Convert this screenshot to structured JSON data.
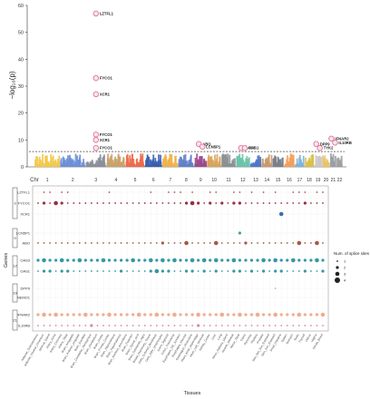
{
  "chart_data": [
    {
      "type": "scatter",
      "subtype": "manhattan",
      "ylabel": "−log₁₀(p)",
      "ylim": [
        0,
        60
      ],
      "yticks": [
        0,
        10,
        20,
        30,
        40,
        50,
        60
      ],
      "xlabel_prefix": "Chr",
      "chromosomes": [
        "1",
        "2",
        "3",
        "4",
        "5",
        "6",
        "7",
        "8",
        "9",
        "10",
        "11",
        "12",
        "13",
        "14",
        "15",
        "16",
        "17",
        "18",
        "19",
        "20",
        "21",
        "22"
      ],
      "chromosome_colors": [
        "#f2c94c",
        "#6e8fd6",
        "#8a8f99",
        "#c9a26b",
        "#ee6a4a",
        "#3a5fb0",
        "#f0b14a",
        "#5f7fc9",
        "#9b4a8c",
        "#d9a45a",
        "#8c8f94",
        "#6cc3a8",
        "#4f78c9",
        "#c99a6e",
        "#7a7f8a",
        "#f4a05a",
        "#7fb3d9",
        "#d9c04a",
        "#c9c9c9",
        "#e8c46a",
        "#9aa0a6",
        "#a0a0a0"
      ],
      "significance_threshold": 5.7,
      "highlighted_snps": [
        {
          "gene": "LZTFL1",
          "chr": "3",
          "neglog10p": 57
        },
        {
          "gene": "FYCO1",
          "chr": "3",
          "neglog10p": 33
        },
        {
          "gene": "XCR1",
          "chr": "3",
          "neglog10p": 27
        },
        {
          "gene": "FYCO1",
          "chr": "3",
          "neglog10p": 12
        },
        {
          "gene": "XCR1",
          "chr": "3",
          "neglog10p": 10
        },
        {
          "gene": "FYCO1",
          "chr": "3",
          "neglog10p": 7
        },
        {
          "gene": "ABO",
          "chr": "9",
          "neglog10p": 8.5
        },
        {
          "gene": "LCN5P1",
          "chr": "9",
          "neglog10p": 7.5
        },
        {
          "gene": "OAS3",
          "chr": "12",
          "neglog10p": 7
        },
        {
          "gene": "OAS1",
          "chr": "12",
          "neglog10p": 7
        },
        {
          "gene": "DPP9",
          "chr": "19",
          "neglog10p": 8.5
        },
        {
          "gene": "TYK2",
          "chr": "19",
          "neglog10p": 7
        },
        {
          "gene": "IFNAR2",
          "chr": "21",
          "neglog10p": 10.5
        },
        {
          "gene": "IL10RB",
          "chr": "21",
          "neglog10p": 9
        }
      ]
    },
    {
      "type": "scatter",
      "subtype": "dot-matrix",
      "ylabel": "Genes",
      "xlabel": "Tissues",
      "genes": [
        "LZTFL1",
        "FYCO1",
        "XCR1",
        "LCN5P1",
        "ABO",
        "OAS3",
        "OAS1",
        "DPP9",
        "NEMO1",
        "IFNAR2",
        "IL10RB"
      ],
      "gene_groups": [
        {
          "label": "3",
          "genes": [
            "LZTFL1",
            "FYCO1",
            "XCR1"
          ]
        },
        {
          "label": "9",
          "genes": [
            "LCN5P1",
            "ABO"
          ]
        },
        {
          "label": "12",
          "genes": [
            "OAS3",
            "OAS1"
          ]
        },
        {
          "label": "19",
          "genes": [
            "DPP9",
            "NEMO1"
          ]
        },
        {
          "label": "21",
          "genes": [
            "IFNAR2",
            "IL10RB"
          ]
        }
      ],
      "gene_colors": {
        "LZTFL1": "#b23a48",
        "FYCO1": "#8b1a2b",
        "XCR1": "#2a5fa8",
        "LCN5P1": "#3a9d5d",
        "ABO": "#a0462e",
        "OAS3": "#1f8e99",
        "OAS1": "#1f8e99",
        "DPP9": "#c8a4b4",
        "NEMO1": "#c8a4b4",
        "IFNAR2": "#f0a384",
        "IL10RB": "#e07a8a"
      },
      "tissues": [
        "Adipose_Subcutaneous",
        "Adipose_Visceral_Omentum",
        "Adrenal_Gland",
        "Artery_Aorta",
        "Artery_Coronary",
        "Artery_Tibial",
        "Brain_Amygdala",
        "Brain_Anterior_cingulate",
        "Brain_Caudate",
        "Brain_Cerebellar_Hemisphere",
        "Brain_Cerebellum",
        "Brain_Cortex",
        "Brain_Frontal_Cortex",
        "Brain_Hippocampus",
        "Brain_Hypothalamus",
        "Brain_Nucleus_accumbens",
        "Brain_Putamen",
        "Brain_Spinal_cord",
        "Brain_Substantia_nigra",
        "Breast_Mammary_Tissue",
        "Cells_Cultured_fibroblasts",
        "Cells_EBV_lymphocytes",
        "Colon_Sigmoid",
        "Colon_Transverse",
        "Esophagus_GE_Junction",
        "Esophagus_Mucosa",
        "Esophagus_Muscularis",
        "Heart_Atrial_Appendage",
        "Heart_Left_Ventricle",
        "Kidney_Cortex",
        "Liver",
        "Lung",
        "Minor_Salivary_Gland",
        "Muscle_Skeletal",
        "Nerve_Tibial",
        "Ovary",
        "Pancreas",
        "Pituitary",
        "Prostate",
        "Skin_Not_Sun_Exposed",
        "Skin_Sun_Exposed",
        "Small_Intestine",
        "Spleen",
        "Stomach",
        "Testis",
        "Thyroid",
        "Uterus",
        "Vagina",
        "Whole_Blood"
      ],
      "legend": {
        "title": "Num. of splice sites",
        "entries": [
          "1",
          "2",
          "3",
          "4"
        ]
      },
      "splice_sites": {
        "LZTFL1": [
          0,
          1,
          1,
          0,
          1,
          1,
          0,
          0,
          0,
          0,
          0,
          0,
          1,
          0,
          0,
          0,
          0,
          0,
          0,
          1,
          0,
          0,
          1,
          1,
          1,
          0,
          1,
          0,
          0,
          1,
          1,
          0,
          0,
          1,
          1,
          0,
          1,
          0,
          1,
          0,
          1,
          0,
          0,
          1,
          1,
          1,
          0,
          1,
          1
        ],
        "FYCO1": [
          1,
          2,
          1,
          3,
          2,
          1,
          1,
          1,
          1,
          1,
          1,
          1,
          1,
          1,
          1,
          1,
          1,
          1,
          1,
          1,
          1,
          1,
          1,
          1,
          1,
          2,
          3,
          2,
          1,
          2,
          1,
          2,
          1,
          2,
          2,
          1,
          1,
          1,
          1,
          1,
          1,
          1,
          1,
          1,
          1,
          2,
          1,
          1,
          1
        ],
        "XCR1": [
          0,
          0,
          0,
          0,
          0,
          0,
          0,
          0,
          0,
          0,
          0,
          0,
          0,
          0,
          0,
          0,
          0,
          0,
          0,
          0,
          0,
          0,
          0,
          0,
          0,
          0,
          0,
          0,
          0,
          0,
          0,
          0,
          0,
          0,
          0,
          0,
          0,
          0,
          0,
          0,
          0,
          3,
          0,
          0,
          0,
          0,
          0,
          0,
          0
        ],
        "LCN5P1": [
          0,
          0,
          0,
          0,
          0,
          0,
          0,
          0,
          0,
          0,
          0,
          0,
          0,
          0,
          0,
          0,
          0,
          0,
          0,
          0,
          0,
          0,
          0,
          0,
          0,
          0,
          0,
          0,
          0,
          0,
          0,
          0,
          0,
          0,
          2,
          0,
          0,
          0,
          0,
          0,
          0,
          0,
          0,
          0,
          0,
          0,
          0,
          0,
          0
        ],
        "ABO": [
          1,
          1,
          1,
          1,
          1,
          1,
          1,
          1,
          1,
          1,
          1,
          1,
          1,
          1,
          1,
          1,
          1,
          1,
          1,
          1,
          1,
          2,
          1,
          1,
          1,
          3,
          1,
          1,
          1,
          1,
          3,
          1,
          1,
          1,
          1,
          2,
          1,
          1,
          1,
          1,
          1,
          1,
          1,
          1,
          3,
          1,
          1,
          3,
          1
        ],
        "OAS3": [
          2,
          3,
          2,
          2,
          3,
          2,
          2,
          3,
          2,
          2,
          2,
          3,
          2,
          2,
          2,
          2,
          3,
          2,
          2,
          3,
          2,
          3,
          2,
          3,
          2,
          2,
          3,
          2,
          3,
          2,
          3,
          2,
          2,
          3,
          2,
          2,
          2,
          2,
          3,
          2,
          3,
          2,
          2,
          3,
          2,
          2,
          2,
          3,
          2
        ],
        "OAS1": [
          1,
          2,
          2,
          1,
          2,
          2,
          1,
          1,
          1,
          1,
          1,
          1,
          1,
          1,
          2,
          1,
          1,
          1,
          1,
          2,
          3,
          2,
          2,
          1,
          1,
          2,
          2,
          1,
          2,
          1,
          2,
          1,
          1,
          2,
          2,
          1,
          2,
          1,
          2,
          1,
          2,
          2,
          1,
          1,
          1,
          2,
          1,
          1,
          2
        ],
        "DPP9": [
          0,
          0,
          0,
          0,
          0,
          0,
          0,
          0,
          0,
          0,
          0,
          0,
          0,
          0,
          0,
          0,
          0,
          0,
          0,
          0,
          0,
          0,
          0,
          0,
          0,
          0,
          0,
          0,
          0,
          0,
          0,
          0,
          0,
          0,
          0,
          0,
          0,
          0,
          0,
          0,
          1,
          0,
          0,
          0,
          0,
          0,
          0,
          0,
          0
        ],
        "NEMO1": [
          0,
          0,
          0,
          0,
          0,
          0,
          0,
          0,
          0,
          0,
          0,
          0,
          0,
          0,
          0,
          0,
          0,
          0,
          0,
          0,
          0,
          0,
          0,
          0,
          0,
          0,
          0,
          0,
          0,
          0,
          0,
          0,
          0,
          0,
          0,
          0,
          0,
          0,
          0,
          0,
          0,
          0,
          0,
          0,
          0,
          0,
          0,
          0,
          0
        ],
        "IFNAR2": [
          2,
          3,
          2,
          3,
          2,
          2,
          2,
          2,
          3,
          2,
          2,
          2,
          3,
          2,
          2,
          2,
          2,
          3,
          2,
          2,
          3,
          2,
          2,
          3,
          2,
          2,
          2,
          3,
          2,
          2,
          2,
          3,
          2,
          2,
          3,
          2,
          2,
          3,
          2,
          2,
          3,
          2,
          2,
          2,
          3,
          2,
          2,
          2,
          3
        ],
        "IL10RB": [
          1,
          1,
          1,
          1,
          1,
          1,
          1,
          1,
          1,
          2,
          1,
          1,
          1,
          1,
          1,
          1,
          1,
          1,
          1,
          1,
          1,
          1,
          1,
          1,
          1,
          1,
          1,
          2,
          1,
          1,
          1,
          1,
          1,
          1,
          1,
          1,
          1,
          1,
          1,
          1,
          1,
          1,
          1,
          1,
          1,
          1,
          1,
          1,
          1
        ]
      }
    }
  ]
}
